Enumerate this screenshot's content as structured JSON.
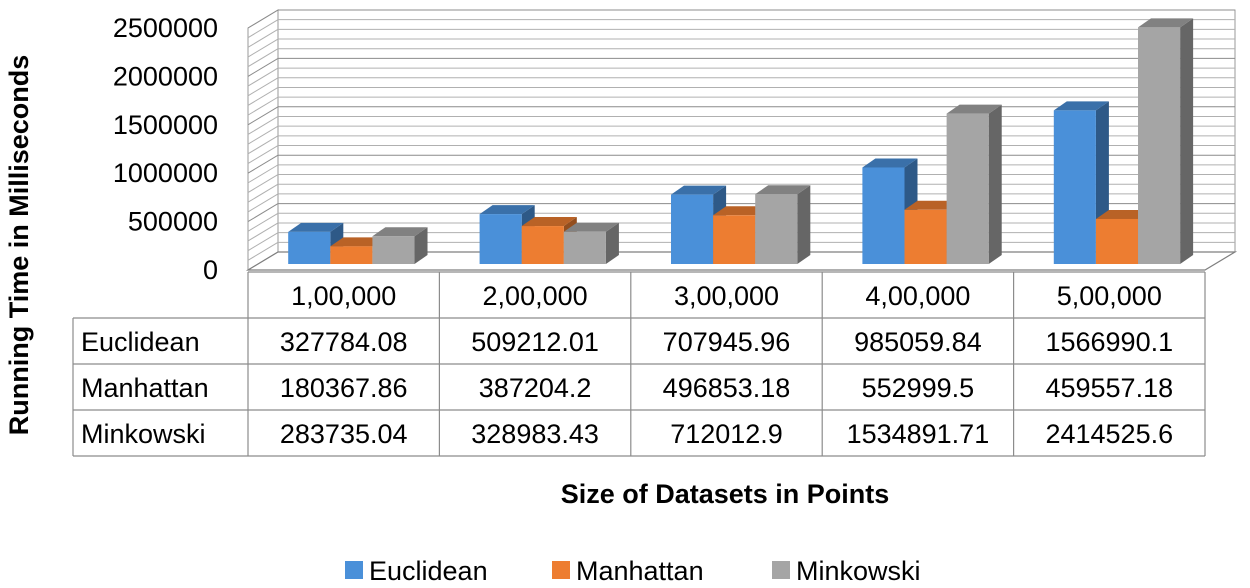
{
  "chart_data": {
    "type": "bar",
    "style": "3d clustered column with data table",
    "xlabel": "Size of Datasets in Points",
    "ylabel": "Running Time in Milliseconds",
    "categories": [
      "1,00,000",
      "2,00,000",
      "3,00,000",
      "4,00,000",
      "5,00,000"
    ],
    "ylim": [
      0,
      2500000
    ],
    "yticks": [
      "0",
      "500000",
      "1000000",
      "1500000",
      "2000000",
      "2500000"
    ],
    "grid": true,
    "legend": "bottom",
    "series": [
      {
        "name": "Euclidean",
        "color": "#4A90D9",
        "values": [
          327784.08,
          509212.01,
          707945.96,
          985059.84,
          1566990.1
        ],
        "labels": [
          "327784.08",
          "509212.01",
          "707945.96",
          "985059.84",
          "1566990.1"
        ]
      },
      {
        "name": "Manhattan",
        "color": "#ED7D31",
        "values": [
          180367.86,
          387204.2,
          496853.18,
          552999.5,
          459557.18
        ],
        "labels": [
          "180367.86",
          "387204.2",
          "496853.18",
          "552999.5",
          "459557.18"
        ]
      },
      {
        "name": "Minkowski",
        "color": "#A5A5A5",
        "values": [
          283735.04,
          328983.43,
          712012.9,
          1534891.71,
          2414525.6
        ],
        "labels": [
          "283735.04",
          "328983.43",
          "712012.9",
          "1534891.71",
          "2414525.6"
        ]
      }
    ]
  }
}
